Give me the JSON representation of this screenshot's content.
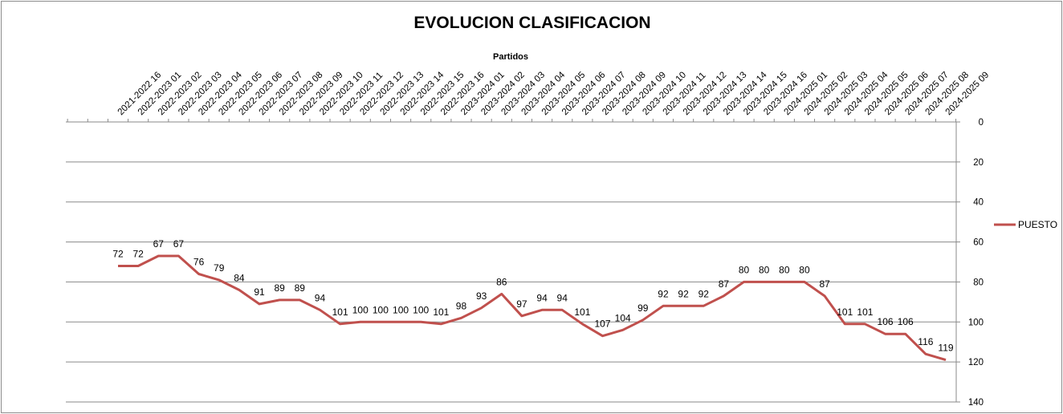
{
  "chart_data": {
    "type": "line",
    "title": "EVOLUCION CLASIFICACION",
    "xlabel": "Partidos",
    "ylabel": "",
    "ylim": [
      0,
      140
    ],
    "y_reversed": true,
    "y_ticks": [
      0,
      20,
      40,
      60,
      80,
      100,
      120,
      140
    ],
    "x_axis_position": "top",
    "y_axis_position": "right",
    "grid": true,
    "legend_position": "right",
    "categories": [
      "2021-2022 16",
      "2022-2023 01",
      "2022-2023 02",
      "2022-2023 03",
      "2022-2023 04",
      "2022-2023 05",
      "2022-2023 06",
      "2022-2023 07",
      "2022-2023 08",
      "2022-2023 09",
      "2022-2023 10",
      "2022-2023 11",
      "2022-2023 12",
      "2022-2023 13",
      "2022-2023 14",
      "2022-2023 15",
      "2022-2023 16",
      "2023-2024 01",
      "2023-2024 02",
      "2023-2024 03",
      "2023-2024 04",
      "2023-2024 05",
      "2023-2024 06",
      "2023-2024 07",
      "2023-2024 08",
      "2023-2024 09",
      "2023-2024 10",
      "2023-2024 11",
      "2023-2024 12",
      "2023-2024 13",
      "2023-2024 14",
      "2023-2024 15",
      "2023-2024 16",
      "2024-2025 01",
      "2024-2025 02",
      "2024-2025 03",
      "2024-2025 04",
      "2024-2025 05",
      "2024-2025 06",
      "2024-2025 07",
      "2024-2025 08",
      "2024-2025 09"
    ],
    "series": [
      {
        "name": "PUESTO",
        "color": "#c0504d",
        "values": [
          72,
          72,
          67,
          67,
          76,
          79,
          84,
          91,
          89,
          89,
          94,
          101,
          100,
          100,
          100,
          100,
          101,
          98,
          93,
          86,
          97,
          94,
          94,
          101,
          107,
          104,
          99,
          92,
          92,
          92,
          87,
          80,
          80,
          80,
          80,
          87,
          101,
          101,
          106,
          106,
          116,
          119
        ]
      }
    ]
  }
}
